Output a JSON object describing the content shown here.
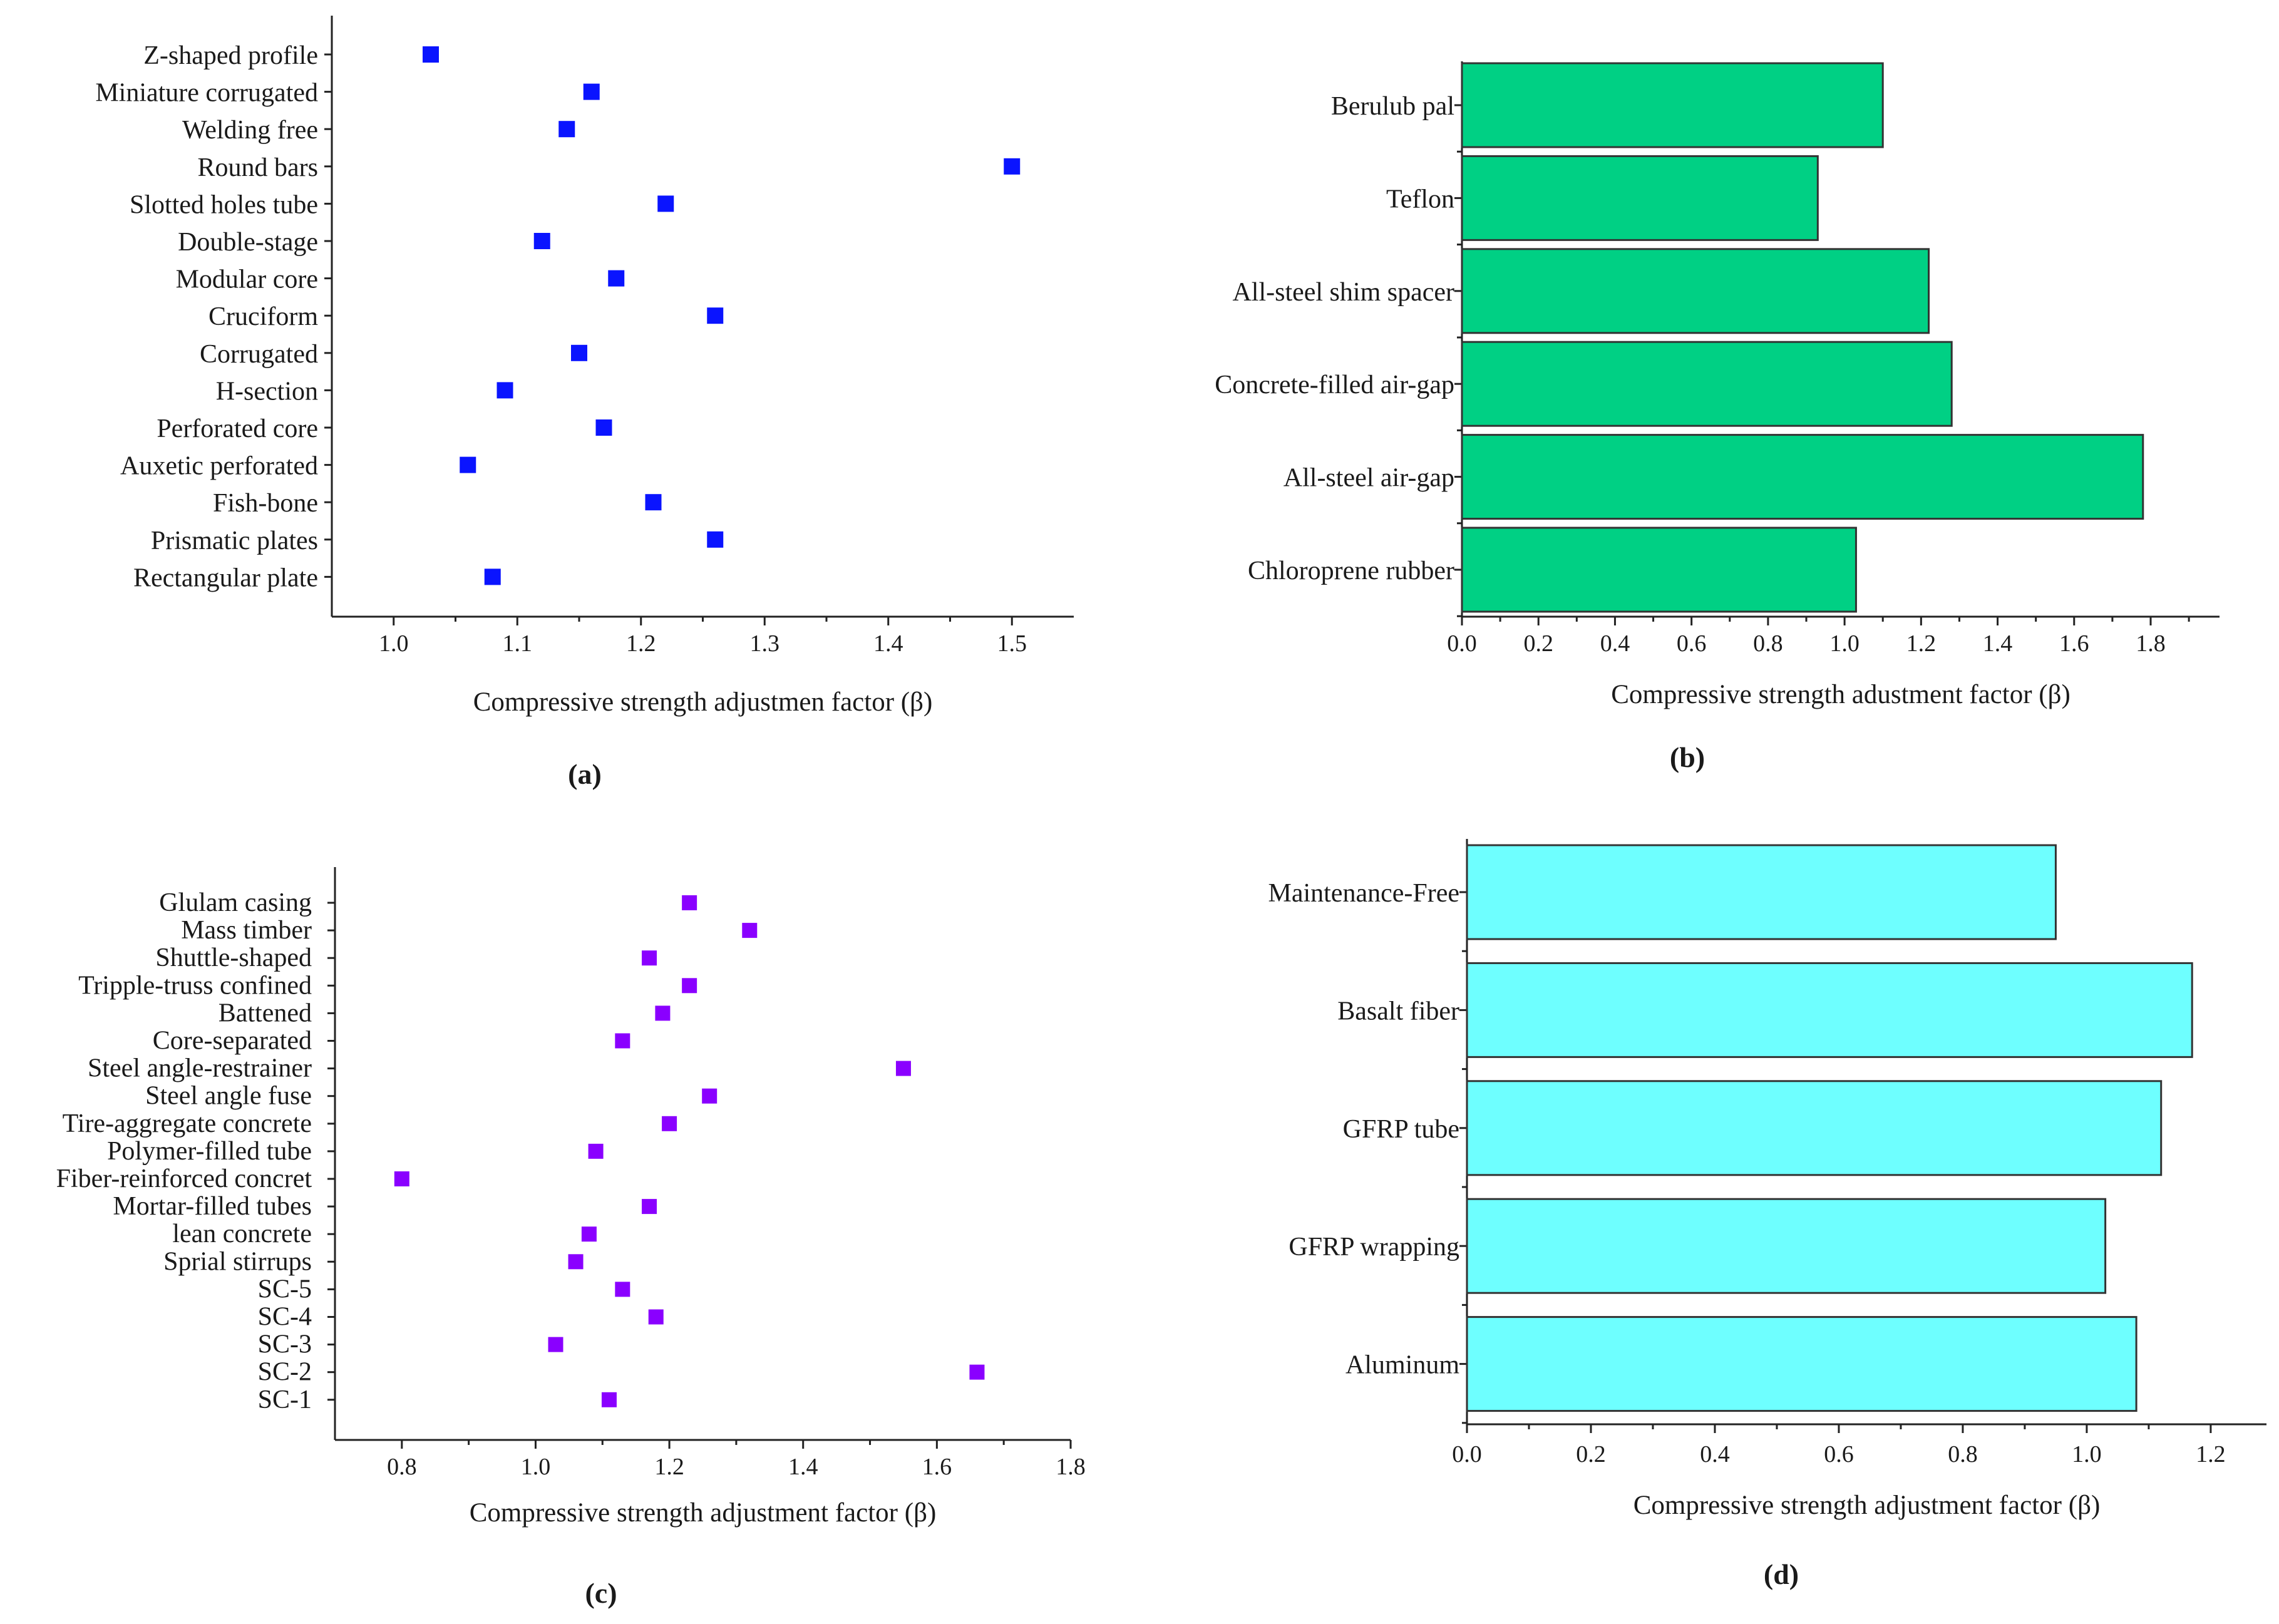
{
  "chart_data": [
    {
      "type": "scatter",
      "panel_label": "(a)",
      "xlabel": "Compressive strength adjustmen factor (β)",
      "xlim": [
        0.95,
        1.55
      ],
      "xticks": [
        "1.0",
        "1.1",
        "1.2",
        "1.3",
        "1.4",
        "1.5"
      ],
      "marker_color": "#0a14ff",
      "categories": [
        "Z-shaped profile",
        "Miniature corrugated",
        "Welding free",
        "Round  bars",
        "Slotted holes tube",
        "Double-stage",
        "Modular core",
        "Cruciform",
        "Corrugated",
        "H-section",
        "Perforated core",
        "Auxetic perforated",
        "Fish-bone ",
        "Prismatic plates",
        "Rectangular plate"
      ],
      "values": [
        1.03,
        1.16,
        1.14,
        1.5,
        1.22,
        1.12,
        1.18,
        1.26,
        1.15,
        1.09,
        1.17,
        1.06,
        1.21,
        1.26,
        1.08
      ]
    },
    {
      "type": "bar",
      "orientation": "horizontal",
      "panel_label": "(b)",
      "xlabel": "Compressive strength adustment factor (β)",
      "xlim": [
        0.0,
        1.98
      ],
      "xticks": [
        "0.0",
        "0.2",
        "0.4",
        "0.6",
        "0.8",
        "1.0",
        "1.2",
        "1.4",
        "1.6",
        "1.8"
      ],
      "bar_color": "#00d084",
      "categories": [
        "Berulub pal",
        "Teflon",
        "All-steel shim spacer",
        "Concrete-filled air-gap",
        "All-steel air-gap",
        "Chloroprene rubber"
      ],
      "values": [
        1.1,
        0.93,
        1.22,
        1.28,
        1.78,
        1.03
      ]
    },
    {
      "type": "scatter",
      "panel_label": "(c)",
      "xlabel": "Compressive strength adjustment factor (β)",
      "xlim": [
        0.7,
        1.8
      ],
      "xticks": [
        "0.8",
        "1.0",
        "1.2",
        "1.4",
        "1.6",
        "1.8"
      ],
      "marker_color": "#8a00ff",
      "categories": [
        "Glulam casing",
        "Mass timber",
        "Shuttle-shaped",
        "Tripple-truss confined",
        "Battened",
        "Core-separated",
        "Steel angle-restrainer",
        "Steel angle fuse",
        "Tire-aggregate concrete",
        "Polymer-filled tube",
        "Fiber-reinforced concret",
        "Mortar-filled tubes",
        "lean concrete",
        "Sprial stirrups",
        "SC-5",
        "SC-4",
        "SC-3",
        "SC-2",
        "SC-1"
      ],
      "values": [
        1.23,
        1.32,
        1.17,
        1.23,
        1.19,
        1.13,
        1.55,
        1.26,
        1.2,
        1.09,
        0.8,
        1.17,
        1.08,
        1.06,
        1.13,
        1.18,
        1.03,
        1.66,
        1.11
      ]
    },
    {
      "type": "bar",
      "orientation": "horizontal",
      "panel_label": "(d)",
      "xlabel": "Compressive strength adjustment factor (β)",
      "xlim": [
        0.0,
        1.29
      ],
      "xticks": [
        "0.0",
        "0.2",
        "0.4",
        "0.6",
        "0.8",
        "1.0",
        "1.2"
      ],
      "bar_color": "#6effff",
      "categories": [
        "Maintenance-Free",
        "Basalt fiber",
        "GFRP tube",
        "GFRP wrapping",
        "Aluminum"
      ],
      "values": [
        0.95,
        1.17,
        1.12,
        1.03,
        1.08
      ]
    }
  ]
}
